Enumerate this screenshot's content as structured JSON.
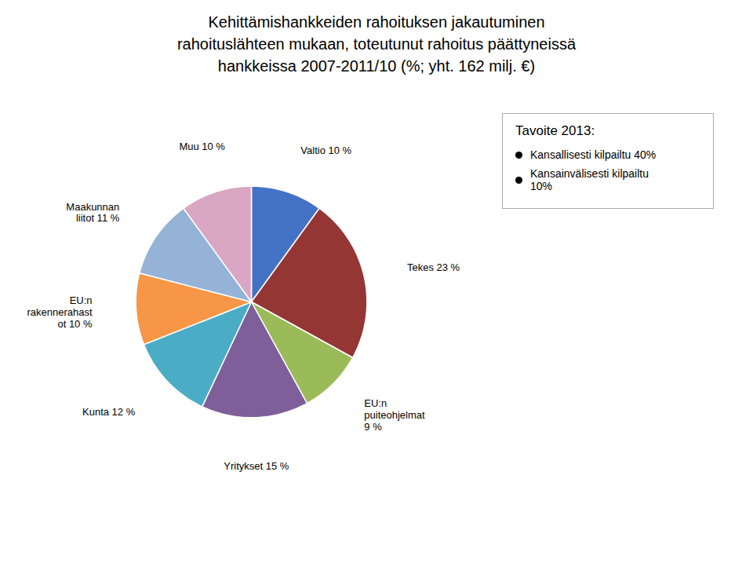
{
  "chart_data": {
    "type": "pie",
    "title": "Kehittämishankkeiden rahoituksen jakautuminen\nrahoituslähteen mukaan, toteutunut rahoitus päättyneissä\nhankkeissa 2007-2011/10 (%; yht. 162 milj. €)",
    "categories": [
      "Valtio 10 %",
      "Tekes 23 %",
      "EU:n\npuiteohjelmat\n9 %",
      "Yritykset 15 %",
      "Kunta 12 %",
      "EU:n\nrakennerahast\not 10 %",
      "Maakunnan\nliitot 11 %",
      "Muu 10 %"
    ],
    "values": [
      10,
      23,
      9,
      15,
      12,
      10,
      11,
      10
    ],
    "colors": [
      "#4472C4",
      "#943634",
      "#9BBB59",
      "#7F5F9A",
      "#4BACC6",
      "#F79646",
      "#95B3D7",
      "#D9A7C3"
    ],
    "annotations": [
      "Tavoite 2013:",
      "Kansallisesti kilpailtu 40%",
      "Kansainvälisesti kilpailtu\n10%"
    ]
  }
}
